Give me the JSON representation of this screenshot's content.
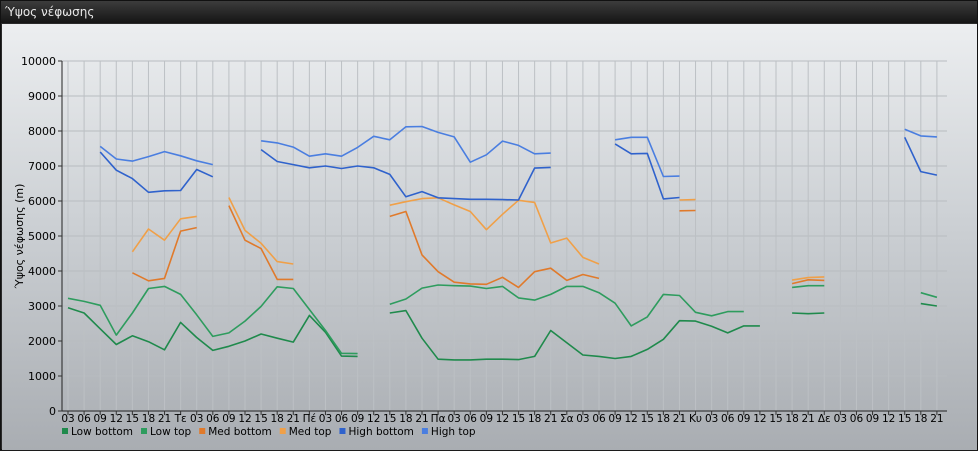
{
  "window": {
    "title": "Ύψος νέφωσης"
  },
  "chart_data": {
    "type": "line",
    "title": "",
    "ylabel": "Ύψος νέφωσης (m)",
    "xlabel": "",
    "ylim": [
      0,
      10000
    ],
    "yticks": [
      0,
      1000,
      2000,
      3000,
      4000,
      5000,
      6000,
      7000,
      8000,
      9000,
      10000
    ],
    "grid": true,
    "legend": "bottom-left",
    "x_tick_labels": [
      "03",
      "06",
      "09",
      "12",
      "15",
      "18",
      "21",
      "Τε",
      "03",
      "06",
      "09",
      "12",
      "15",
      "18",
      "21",
      "Πέ",
      "03",
      "06",
      "09",
      "12",
      "15",
      "18",
      "21",
      "Πα",
      "03",
      "06",
      "09",
      "12",
      "15",
      "18",
      "21",
      "Σα",
      "03",
      "06",
      "09",
      "12",
      "15",
      "18",
      "21",
      "Κυ",
      "03",
      "06",
      "09",
      "12",
      "15",
      "18",
      "21",
      "Δε",
      "03",
      "06",
      "09",
      "12",
      "15",
      "18",
      "21"
    ],
    "series": [
      {
        "name": "Low bottom",
        "color": "#1f8a4c",
        "values": [
          2950,
          2800,
          2350,
          1900,
          2150,
          1980,
          1750,
          2530,
          2100,
          1730,
          1850,
          2000,
          2200,
          2080,
          1970,
          2730,
          2250,
          1570,
          1560,
          null,
          2800,
          2870,
          2080,
          1480,
          1460,
          1460,
          1480,
          1480,
          1470,
          1560,
          2300,
          1950,
          1600,
          1560,
          1500,
          1560,
          1760,
          2050,
          2580,
          2570,
          2420,
          2230,
          2430,
          2430,
          null,
          2800,
          2780,
          2800,
          null,
          null,
          null,
          null,
          null,
          3070,
          3000
        ]
      },
      {
        "name": "Low top",
        "color": "#2e9c5e",
        "values": [
          3220,
          3130,
          3020,
          2170,
          2800,
          3500,
          3560,
          3330,
          2750,
          2130,
          2230,
          2570,
          2990,
          3550,
          3500,
          2900,
          2300,
          1650,
          1640,
          null,
          3050,
          3200,
          3510,
          3600,
          3580,
          3570,
          3500,
          3560,
          3230,
          3170,
          3330,
          3560,
          3560,
          3380,
          3080,
          2430,
          2690,
          3330,
          3300,
          2820,
          2720,
          2840,
          2840,
          null,
          null,
          3530,
          3580,
          3580,
          null,
          null,
          null,
          null,
          null,
          3380,
          3250
        ]
      },
      {
        "name": "Med bottom",
        "color": "#e07a2b",
        "values": [
          null,
          null,
          null,
          null,
          3950,
          3720,
          3790,
          5140,
          5240,
          null,
          5870,
          4880,
          4640,
          3760,
          3760,
          null,
          null,
          null,
          null,
          null,
          5560,
          5700,
          4460,
          3980,
          3680,
          3630,
          3620,
          3820,
          3530,
          3980,
          4080,
          3730,
          3900,
          3790,
          null,
          null,
          null,
          null,
          5720,
          5730,
          null,
          null,
          null,
          null,
          null,
          3640,
          3750,
          3730,
          null,
          null,
          null,
          null,
          null,
          null,
          null
        ]
      },
      {
        "name": "Med top",
        "color": "#f0a048",
        "values": [
          null,
          null,
          null,
          null,
          4550,
          5200,
          4880,
          5490,
          5560,
          null,
          6100,
          5160,
          4790,
          4270,
          4200,
          null,
          null,
          null,
          null,
          null,
          5880,
          5980,
          6070,
          6090,
          5890,
          5700,
          5180,
          5620,
          6020,
          5960,
          4800,
          4940,
          4390,
          4200,
          null,
          null,
          null,
          null,
          6030,
          6040,
          null,
          null,
          null,
          null,
          null,
          3740,
          3810,
          3830,
          null,
          null,
          null,
          null,
          null,
          null,
          null
        ]
      },
      {
        "name": "High bottom",
        "color": "#2f62cc",
        "values": [
          null,
          null,
          7400,
          6880,
          6640,
          6250,
          6290,
          6300,
          6900,
          6690,
          null,
          null,
          7470,
          7130,
          7040,
          6950,
          7000,
          6930,
          7000,
          6950,
          6760,
          6120,
          6270,
          6090,
          6070,
          6050,
          6050,
          6040,
          6030,
          6940,
          6960,
          null,
          null,
          null,
          7630,
          7350,
          7360,
          6060,
          6100,
          null,
          null,
          null,
          null,
          null,
          null,
          null,
          null,
          null,
          null,
          null,
          null,
          null,
          7820,
          6840,
          6740
        ]
      },
      {
        "name": "High top",
        "color": "#4a7ee0",
        "values": [
          null,
          null,
          7560,
          7200,
          7140,
          7270,
          7410,
          7290,
          7150,
          7040,
          null,
          null,
          7720,
          7660,
          7540,
          7280,
          7350,
          7280,
          7530,
          7850,
          7750,
          8120,
          8130,
          7960,
          7830,
          7110,
          7320,
          7710,
          7590,
          7350,
          7370,
          null,
          null,
          null,
          7750,
          7820,
          7820,
          6700,
          6710,
          null,
          null,
          null,
          null,
          null,
          null,
          null,
          null,
          null,
          null,
          null,
          null,
          null,
          8050,
          7860,
          7830
        ]
      }
    ]
  }
}
